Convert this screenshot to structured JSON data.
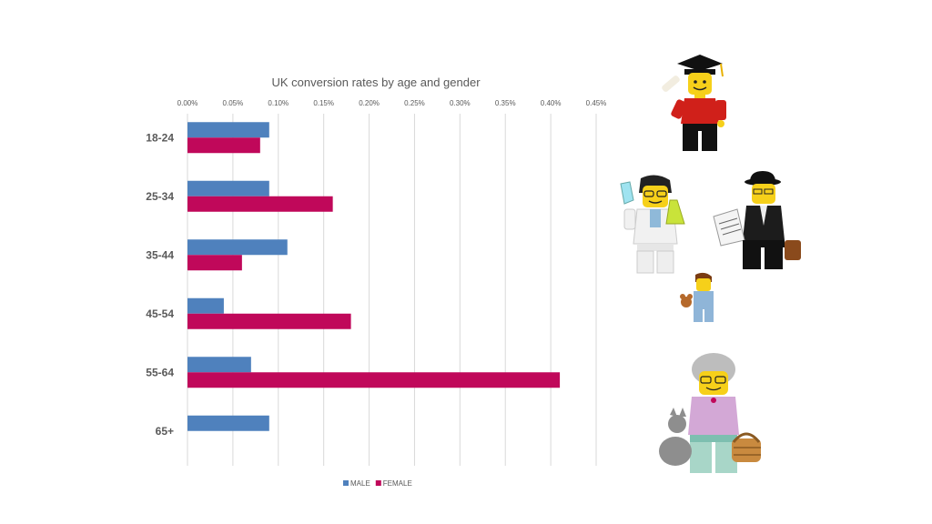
{
  "chart_data": {
    "type": "bar",
    "orientation": "horizontal",
    "title": "UK conversion rates by age and gender",
    "categories": [
      "18-24",
      "25-34",
      "35-44",
      "45-54",
      "55-64",
      "65+"
    ],
    "series": [
      {
        "name": "MALE",
        "color": "#4f81bd",
        "values": [
          0.09,
          0.09,
          0.11,
          0.04,
          0.07,
          0.09
        ]
      },
      {
        "name": "FEMALE",
        "color": "#c0085a",
        "values": [
          0.08,
          0.16,
          0.06,
          0.18,
          0.41,
          0.0
        ]
      }
    ],
    "xlim": [
      0,
      0.45
    ],
    "ticks": [
      "0.00%",
      "0.05%",
      "0.10%",
      "0.15%",
      "0.20%",
      "0.25%",
      "0.30%",
      "0.35%",
      "0.40%",
      "0.45%"
    ],
    "value_unit": "%",
    "gridlines": true,
    "legend_position": "bottom-center"
  },
  "decorations": {
    "figures": [
      "graduate-minifigure",
      "scientist-minifigure",
      "businessman-minifigure",
      "child-minifigure",
      "grandmother-minifigure"
    ]
  }
}
